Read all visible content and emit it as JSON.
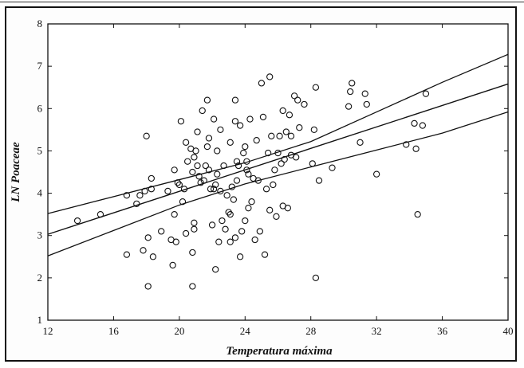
{
  "chart_data": {
    "type": "scatter",
    "title": "",
    "xlabel": "Temperatura máxima",
    "ylabel": "LN Poaceae",
    "xlim": [
      12,
      40
    ],
    "ylim": [
      1,
      8
    ],
    "xticks": [
      12,
      16,
      20,
      24,
      28,
      32,
      36,
      40
    ],
    "yticks": [
      1,
      2,
      3,
      4,
      5,
      6,
      7,
      8
    ],
    "grid": false,
    "legend": "none",
    "marker": "open-circle",
    "regression_line": {
      "x": [
        12,
        40
      ],
      "y": [
        3.03,
        6.58
      ]
    },
    "confidence_band_upper": {
      "x": [
        12,
        16,
        20,
        24,
        28,
        32,
        36,
        40
      ],
      "y": [
        3.52,
        3.92,
        4.32,
        4.72,
        5.22,
        5.92,
        6.62,
        7.28
      ]
    },
    "confidence_band_lower": {
      "x": [
        12,
        16,
        20,
        24,
        28,
        32,
        36,
        40
      ],
      "y": [
        2.52,
        3.12,
        3.72,
        4.22,
        4.62,
        5.02,
        5.42,
        5.92
      ]
    },
    "points": [
      [
        13.8,
        3.35
      ],
      [
        15.2,
        3.5
      ],
      [
        16.8,
        3.95
      ],
      [
        16.8,
        2.55
      ],
      [
        17.4,
        3.75
      ],
      [
        17.6,
        3.95
      ],
      [
        17.8,
        2.65
      ],
      [
        17.9,
        4.05
      ],
      [
        18.0,
        5.35
      ],
      [
        18.1,
        2.95
      ],
      [
        18.1,
        1.8
      ],
      [
        18.3,
        4.1
      ],
      [
        18.3,
        4.35
      ],
      [
        18.4,
        2.5
      ],
      [
        18.9,
        3.1
      ],
      [
        19.3,
        4.05
      ],
      [
        19.5,
        2.9
      ],
      [
        19.6,
        2.3
      ],
      [
        19.7,
        3.5
      ],
      [
        19.7,
        4.55
      ],
      [
        19.8,
        2.85
      ],
      [
        19.9,
        4.25
      ],
      [
        20.0,
        4.2
      ],
      [
        20.1,
        5.7
      ],
      [
        20.2,
        3.8
      ],
      [
        20.3,
        4.1
      ],
      [
        20.4,
        5.2
      ],
      [
        20.4,
        3.05
      ],
      [
        20.5,
        4.75
      ],
      [
        20.7,
        5.05
      ],
      [
        20.8,
        4.5
      ],
      [
        20.8,
        1.8
      ],
      [
        20.8,
        2.6
      ],
      [
        20.9,
        3.3
      ],
      [
        20.9,
        3.15
      ],
      [
        20.9,
        4.85
      ],
      [
        21.0,
        5.0
      ],
      [
        21.1,
        5.45
      ],
      [
        21.1,
        4.65
      ],
      [
        21.2,
        4.4
      ],
      [
        21.3,
        4.25
      ],
      [
        21.4,
        5.95
      ],
      [
        21.5,
        4.3
      ],
      [
        21.6,
        4.65
      ],
      [
        21.7,
        5.1
      ],
      [
        21.7,
        6.2
      ],
      [
        21.8,
        4.55
      ],
      [
        21.8,
        5.3
      ],
      [
        21.9,
        4.1
      ],
      [
        22.0,
        3.25
      ],
      [
        22.1,
        4.1
      ],
      [
        22.1,
        5.75
      ],
      [
        22.2,
        4.2
      ],
      [
        22.2,
        2.2
      ],
      [
        22.3,
        5.0
      ],
      [
        22.3,
        4.45
      ],
      [
        22.4,
        2.85
      ],
      [
        22.5,
        4.05
      ],
      [
        22.5,
        5.5
      ],
      [
        22.6,
        3.35
      ],
      [
        22.7,
        4.65
      ],
      [
        22.8,
        3.15
      ],
      [
        22.9,
        3.95
      ],
      [
        23.0,
        3.55
      ],
      [
        23.1,
        5.2
      ],
      [
        23.1,
        2.85
      ],
      [
        23.1,
        3.5
      ],
      [
        23.2,
        4.15
      ],
      [
        23.3,
        3.85
      ],
      [
        23.4,
        6.2
      ],
      [
        23.4,
        2.95
      ],
      [
        23.4,
        5.7
      ],
      [
        23.5,
        4.75
      ],
      [
        23.5,
        4.3
      ],
      [
        23.6,
        4.65
      ],
      [
        23.7,
        5.6
      ],
      [
        23.7,
        2.5
      ],
      [
        23.8,
        3.1
      ],
      [
        23.9,
        4.95
      ],
      [
        24.0,
        5.1
      ],
      [
        24.0,
        3.35
      ],
      [
        24.1,
        4.55
      ],
      [
        24.1,
        4.75
      ],
      [
        24.2,
        4.45
      ],
      [
        24.2,
        3.65
      ],
      [
        24.3,
        5.75
      ],
      [
        24.4,
        3.8
      ],
      [
        24.5,
        4.35
      ],
      [
        24.6,
        2.9
      ],
      [
        24.7,
        5.25
      ],
      [
        24.8,
        4.3
      ],
      [
        24.9,
        3.1
      ],
      [
        25.0,
        6.6
      ],
      [
        25.1,
        5.8
      ],
      [
        25.2,
        2.55
      ],
      [
        25.3,
        4.1
      ],
      [
        25.4,
        4.95
      ],
      [
        25.5,
        3.6
      ],
      [
        25.5,
        6.75
      ],
      [
        25.6,
        5.35
      ],
      [
        25.7,
        4.2
      ],
      [
        25.8,
        4.55
      ],
      [
        25.9,
        3.45
      ],
      [
        26.0,
        4.95
      ],
      [
        26.1,
        5.35
      ],
      [
        26.2,
        4.7
      ],
      [
        26.3,
        3.7
      ],
      [
        26.3,
        5.95
      ],
      [
        26.4,
        4.8
      ],
      [
        26.5,
        5.45
      ],
      [
        26.6,
        3.65
      ],
      [
        26.7,
        5.85
      ],
      [
        26.8,
        4.9
      ],
      [
        26.8,
        5.35
      ],
      [
        27.0,
        6.3
      ],
      [
        27.1,
        4.85
      ],
      [
        27.2,
        6.2
      ],
      [
        27.3,
        5.55
      ],
      [
        27.6,
        6.1
      ],
      [
        28.1,
        4.7
      ],
      [
        28.2,
        5.5
      ],
      [
        28.3,
        2.0
      ],
      [
        28.3,
        6.5
      ],
      [
        28.5,
        4.3
      ],
      [
        29.3,
        4.6
      ],
      [
        30.3,
        6.05
      ],
      [
        30.4,
        6.4
      ],
      [
        30.5,
        6.6
      ],
      [
        31.0,
        5.2
      ],
      [
        31.3,
        6.35
      ],
      [
        31.4,
        6.1
      ],
      [
        32.0,
        4.45
      ],
      [
        33.8,
        5.15
      ],
      [
        34.3,
        5.65
      ],
      [
        34.4,
        5.05
      ],
      [
        34.5,
        3.5
      ],
      [
        34.8,
        5.6
      ],
      [
        35.0,
        6.35
      ]
    ]
  }
}
